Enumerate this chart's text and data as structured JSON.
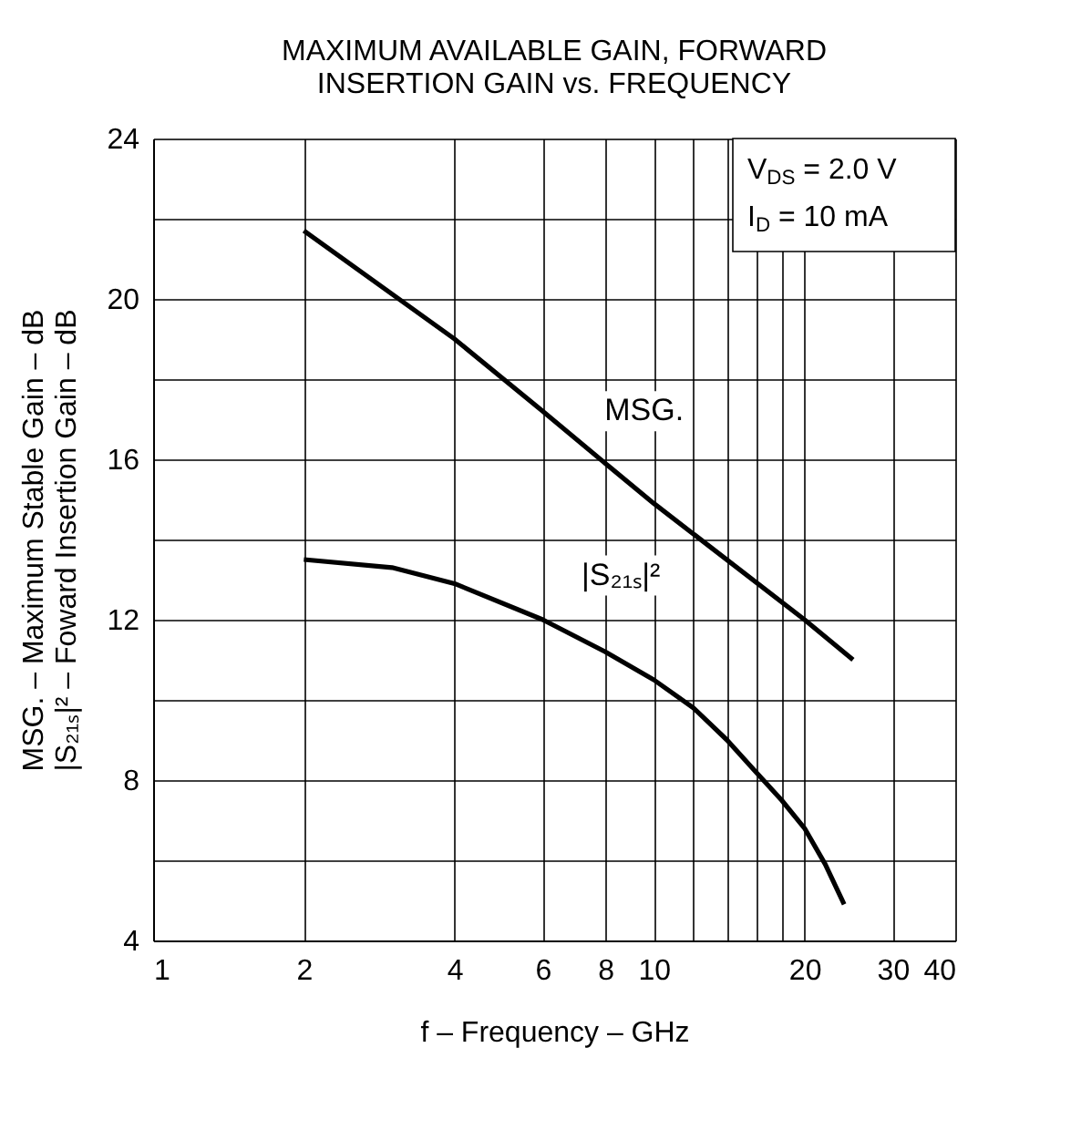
{
  "chart_data": {
    "type": "line",
    "title": "MAXIMUM AVAILABLE GAIN, FORWARD\nINSERTION GAIN vs. FREQUENCY",
    "xlabel": "f – Frequency – GHz",
    "ylabel": "MSG. – Maximum Stable Gain – dB\n|S₂₁ₛ|² – Foward Insertion Gain – dB",
    "log": "x",
    "grid": true,
    "legend": false,
    "marker": "none",
    "line_style": "solid",
    "xlim": [
      1,
      40
    ],
    "xticks": [
      1,
      2,
      4,
      6,
      8,
      10,
      {
        "value": 12,
        "label": null
      },
      {
        "value": 14,
        "label": null
      },
      {
        "value": 16,
        "label": null
      },
      {
        "value": 18,
        "label": null
      },
      20,
      30,
      40
    ],
    "ylim": [
      4,
      24
    ],
    "yticks": [
      4,
      {
        "value": 6,
        "label": null
      },
      8,
      {
        "value": 10,
        "label": null
      },
      12,
      {
        "value": 14,
        "label": null
      },
      16,
      {
        "value": 18,
        "label": null
      },
      20,
      {
        "value": 22,
        "label": null
      },
      24
    ],
    "series": [
      {
        "color": "#000000",
        "x": [
          2,
          4,
          6,
          8,
          10,
          20,
          25
        ],
        "values": [
          21.7,
          19.0,
          17.2,
          15.9,
          14.9,
          12.0,
          11.0
        ]
      },
      {
        "color": "#000000",
        "x": [
          2,
          3,
          4,
          6,
          8,
          10,
          12,
          14,
          16,
          18,
          20,
          22,
          24
        ],
        "values": [
          13.5,
          13.3,
          12.9,
          12.0,
          11.2,
          10.5,
          9.8,
          9.0,
          8.2,
          7.5,
          6.8,
          5.9,
          4.9
        ]
      }
    ],
    "annotations": [
      "MSG.",
      "|S₂₁ₛ|²",
      "V$_{DS}$ = 2.0 V",
      "I$_{D}$ = 10 mA"
    ]
  }
}
